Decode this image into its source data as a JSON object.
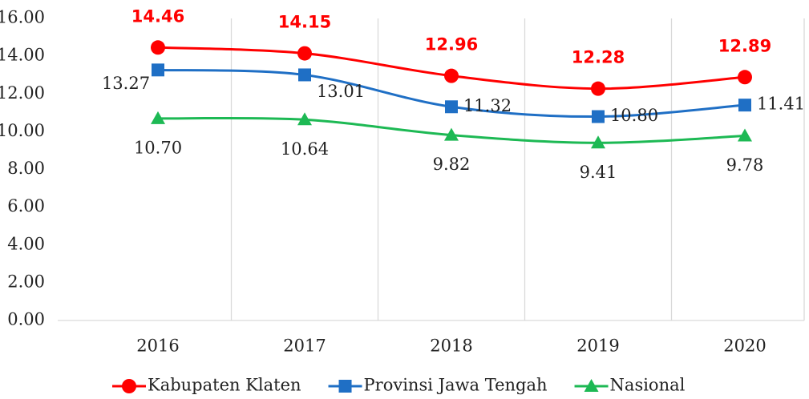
{
  "chart_data": {
    "type": "line",
    "categories": [
      "2016",
      "2017",
      "2018",
      "2019",
      "2020"
    ],
    "series": [
      {
        "name": "Kabupaten Klaten",
        "color": "#ff0000",
        "marker": "circle",
        "values": [
          14.46,
          14.15,
          12.96,
          12.28,
          12.89
        ],
        "value_labels": [
          "14.46",
          "14.15",
          "12.96",
          "12.28",
          "12.89"
        ]
      },
      {
        "name": "Provinsi Jawa Tengah",
        "color": "#1f6fc5",
        "marker": "square",
        "values": [
          13.27,
          13.01,
          11.32,
          10.8,
          11.41
        ],
        "value_labels": [
          "13.27",
          "13.01",
          "11.32",
          "10.80",
          "11.41"
        ]
      },
      {
        "name": "Nasional",
        "color": "#1db954",
        "marker": "triangle",
        "values": [
          10.7,
          10.64,
          9.82,
          9.41,
          9.78
        ],
        "value_labels": [
          "10.70",
          "10.64",
          "9.82",
          "9.41",
          "9.78"
        ]
      }
    ],
    "ylim": [
      0,
      16
    ],
    "yticks": [
      {
        "value": 0,
        "label": "0.00"
      },
      {
        "value": 2,
        "label": "2.00"
      },
      {
        "value": 4,
        "label": "4.00"
      },
      {
        "value": 6,
        "label": "6.00"
      },
      {
        "value": 8,
        "label": "8.00"
      },
      {
        "value": 10,
        "label": "10.00"
      },
      {
        "value": 12,
        "label": "12.00"
      },
      {
        "value": 14,
        "label": "14.00"
      },
      {
        "value": 16,
        "label": "16.00"
      }
    ],
    "grid": true,
    "smooth": true,
    "legend": "bottom"
  }
}
